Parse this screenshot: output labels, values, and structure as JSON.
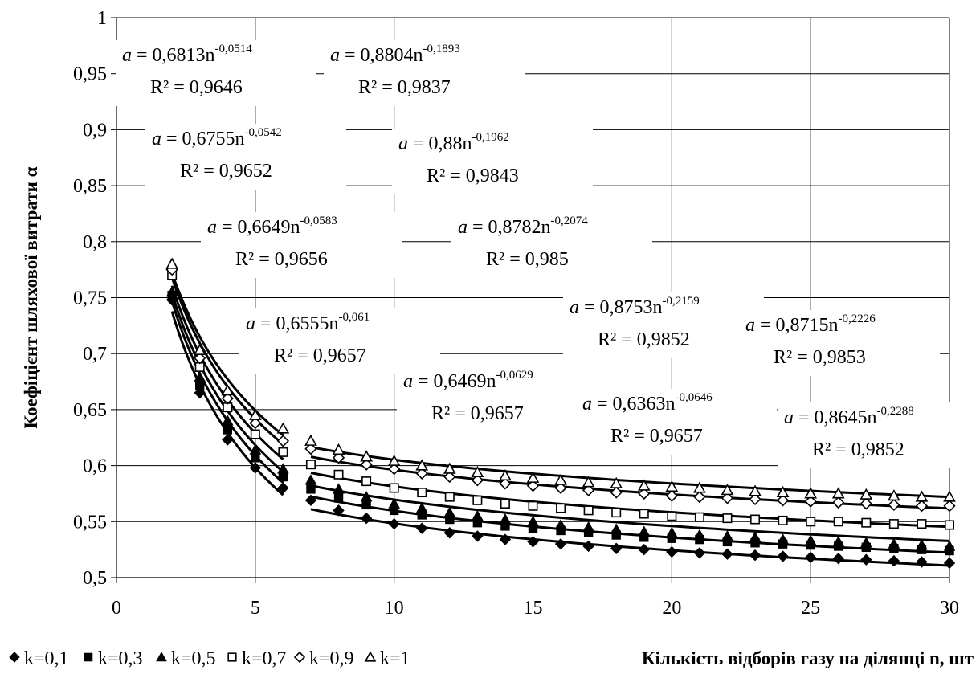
{
  "chart_data": {
    "type": "scatter",
    "title": "",
    "xlabel": "Кількість відборів газу на ділянці n, шт",
    "ylabel": "Коефіцієнт шляхової витрати   α",
    "xlim": [
      0,
      30
    ],
    "ylim": [
      0.5,
      1
    ],
    "x_ticks": [
      "0",
      "5",
      "10",
      "15",
      "20",
      "25",
      "30"
    ],
    "y_ticks": [
      "0,5",
      "0,55",
      "0,6",
      "0,65",
      "0,7",
      "0,75",
      "0,8",
      "0,85",
      "0,9",
      "0,95",
      "1"
    ],
    "grid": true,
    "legend_position": "bottom-left",
    "series": [
      {
        "name": "k=0,1",
        "marker": "diamond-filled",
        "x": [
          2,
          3,
          4,
          5,
          6,
          7,
          8,
          9,
          10,
          11,
          12,
          13,
          14,
          15,
          16,
          17,
          18,
          19,
          20,
          21,
          22,
          23,
          24,
          25,
          26,
          27,
          28,
          29,
          30
        ],
        "y": [
          0.748,
          0.665,
          0.623,
          0.598,
          0.58,
          0.569,
          0.56,
          0.553,
          0.548,
          0.544,
          0.54,
          0.537,
          0.534,
          0.532,
          0.53,
          0.528,
          0.526,
          0.525,
          0.523,
          0.522,
          0.521,
          0.52,
          0.519,
          0.518,
          0.517,
          0.516,
          0.515,
          0.514,
          0.513
        ]
      },
      {
        "name": "k=0,3",
        "marker": "square-filled",
        "x": [
          2,
          3,
          4,
          5,
          6,
          7,
          8,
          9,
          10,
          11,
          12,
          13,
          14,
          15,
          16,
          17,
          18,
          19,
          20,
          21,
          22,
          23,
          24,
          25,
          26,
          27,
          28,
          29,
          30
        ],
        "y": [
          0.752,
          0.672,
          0.632,
          0.607,
          0.59,
          0.579,
          0.571,
          0.565,
          0.56,
          0.556,
          0.552,
          0.549,
          0.546,
          0.544,
          0.542,
          0.54,
          0.538,
          0.536,
          0.535,
          0.534,
          0.532,
          0.531,
          0.53,
          0.529,
          0.528,
          0.527,
          0.526,
          0.525,
          0.524
        ]
      },
      {
        "name": "k=0,5",
        "marker": "triangle-filled",
        "x": [
          2,
          3,
          4,
          5,
          6,
          7,
          8,
          9,
          10,
          11,
          12,
          13,
          14,
          15,
          16,
          17,
          18,
          19,
          20,
          21,
          22,
          23,
          24,
          25,
          26,
          27,
          28,
          29,
          30
        ],
        "y": [
          0.755,
          0.679,
          0.64,
          0.614,
          0.597,
          0.587,
          0.579,
          0.572,
          0.566,
          0.562,
          0.558,
          0.555,
          0.552,
          0.55,
          0.547,
          0.545,
          0.543,
          0.541,
          0.54,
          0.538,
          0.537,
          0.536,
          0.534,
          0.533,
          0.532,
          0.531,
          0.53,
          0.529,
          0.528
        ]
      },
      {
        "name": "k=0,7",
        "marker": "square-open",
        "x": [
          2,
          3,
          4,
          5,
          6,
          7,
          8,
          9,
          10,
          11,
          12,
          13,
          14,
          15,
          16,
          17,
          18,
          19,
          20,
          21,
          22,
          23,
          24,
          25,
          26,
          27,
          28,
          29,
          30
        ],
        "y": [
          0.77,
          0.688,
          0.652,
          0.628,
          0.612,
          0.601,
          0.592,
          0.586,
          0.58,
          0.576,
          0.572,
          0.569,
          0.566,
          0.564,
          0.562,
          0.56,
          0.558,
          0.557,
          0.555,
          0.554,
          0.553,
          0.552,
          0.551,
          0.55,
          0.55,
          0.549,
          0.548,
          0.548,
          0.547
        ]
      },
      {
        "name": "k=0,9",
        "marker": "diamond-open",
        "x": [
          2,
          3,
          4,
          5,
          6,
          7,
          8,
          9,
          10,
          11,
          12,
          13,
          14,
          15,
          16,
          17,
          18,
          19,
          20,
          21,
          22,
          23,
          24,
          25,
          26,
          27,
          28,
          29,
          30
        ],
        "y": [
          0.775,
          0.696,
          0.66,
          0.638,
          0.622,
          0.615,
          0.607,
          0.601,
          0.597,
          0.593,
          0.59,
          0.587,
          0.584,
          0.582,
          0.58,
          0.578,
          0.576,
          0.575,
          0.573,
          0.572,
          0.571,
          0.57,
          0.569,
          0.568,
          0.567,
          0.566,
          0.565,
          0.564,
          0.564
        ]
      },
      {
        "name": "k=1",
        "marker": "triangle-open",
        "x": [
          2,
          3,
          4,
          5,
          6,
          7,
          8,
          9,
          10,
          11,
          12,
          13,
          14,
          15,
          16,
          17,
          18,
          19,
          20,
          21,
          22,
          23,
          24,
          25,
          26,
          27,
          28,
          29,
          30
        ],
        "y": [
          0.78,
          0.703,
          0.667,
          0.645,
          0.633,
          0.622,
          0.614,
          0.608,
          0.604,
          0.6,
          0.597,
          0.594,
          0.591,
          0.589,
          0.587,
          0.585,
          0.584,
          0.582,
          0.581,
          0.58,
          0.578,
          0.577,
          0.576,
          0.575,
          0.575,
          0.574,
          0.573,
          0.572,
          0.572
        ]
      }
    ],
    "trendlines": [
      {
        "a": 0.6813,
        "b": -0.0514,
        "x_range": [
          7,
          30
        ]
      },
      {
        "a": 0.6755,
        "b": -0.0542,
        "x_range": [
          7,
          30
        ]
      },
      {
        "a": 0.6649,
        "b": -0.0583,
        "x_range": [
          7,
          30
        ]
      },
      {
        "a": 0.6555,
        "b": -0.061,
        "x_range": [
          7,
          30
        ]
      },
      {
        "a": 0.6469,
        "b": -0.0629,
        "x_range": [
          7,
          30
        ]
      },
      {
        "a": 0.6363,
        "b": -0.0646,
        "x_range": [
          7,
          30
        ]
      },
      {
        "a": 0.8804,
        "b": -0.1893,
        "x_range": [
          2,
          6
        ]
      },
      {
        "a": 0.88,
        "b": -0.1962,
        "x_range": [
          2,
          6
        ]
      },
      {
        "a": 0.8782,
        "b": -0.2074,
        "x_range": [
          2,
          6
        ]
      },
      {
        "a": 0.8753,
        "b": -0.2159,
        "x_range": [
          2,
          6
        ]
      },
      {
        "a": 0.8715,
        "b": -0.2226,
        "x_range": [
          2,
          6
        ]
      },
      {
        "a": 0.8645,
        "b": -0.2288,
        "x_range": [
          2,
          6
        ]
      }
    ],
    "annotations": [
      {
        "eq_prefix": "a",
        "eq_body": " = 0,6813n",
        "eq_exp": "-0,0514",
        "r2": "R² = 0,9646"
      },
      {
        "eq_prefix": "a",
        "eq_body": " = 0,8804n",
        "eq_exp": "-0,1893",
        "r2": "R² = 0,9837"
      },
      {
        "eq_prefix": "a",
        "eq_body": " = 0,6755n",
        "eq_exp": "-0,0542",
        "r2": "R² = 0,9652"
      },
      {
        "eq_prefix": "a",
        "eq_body": " = 0,88n",
        "eq_exp": "-0,1962",
        "r2": "R² = 0,9843"
      },
      {
        "eq_prefix": "a",
        "eq_body": " = 0,6649n",
        "eq_exp": "-0,0583",
        "r2": "R² = 0,9656"
      },
      {
        "eq_prefix": "a",
        "eq_body": " = 0,8782n",
        "eq_exp": "-0,2074",
        "r2": "R² = 0,985"
      },
      {
        "eq_prefix": "a",
        "eq_body": " = 0,6555n",
        "eq_exp": "-0,061",
        "r2": "R² = 0,9657"
      },
      {
        "eq_prefix": "a",
        "eq_body": " = 0,8753n",
        "eq_exp": "-0,2159",
        "r2": "R² = 0,9852"
      },
      {
        "eq_prefix": "a",
        "eq_body": " = 0,8715n",
        "eq_exp": "-0,2226",
        "r2": "R² = 0,9853"
      },
      {
        "eq_prefix": "a",
        "eq_body": " = 0,6469n",
        "eq_exp": "-0,0629",
        "r2": "R² = 0,9657"
      },
      {
        "eq_prefix": "a",
        "eq_body": " = 0,6363n",
        "eq_exp": "-0,0646",
        "r2": "R² = 0,9657"
      },
      {
        "eq_prefix": "a",
        "eq_body": " = 0,8645n",
        "eq_exp": "-0,2288",
        "r2": "R² = 0,9852"
      }
    ]
  }
}
